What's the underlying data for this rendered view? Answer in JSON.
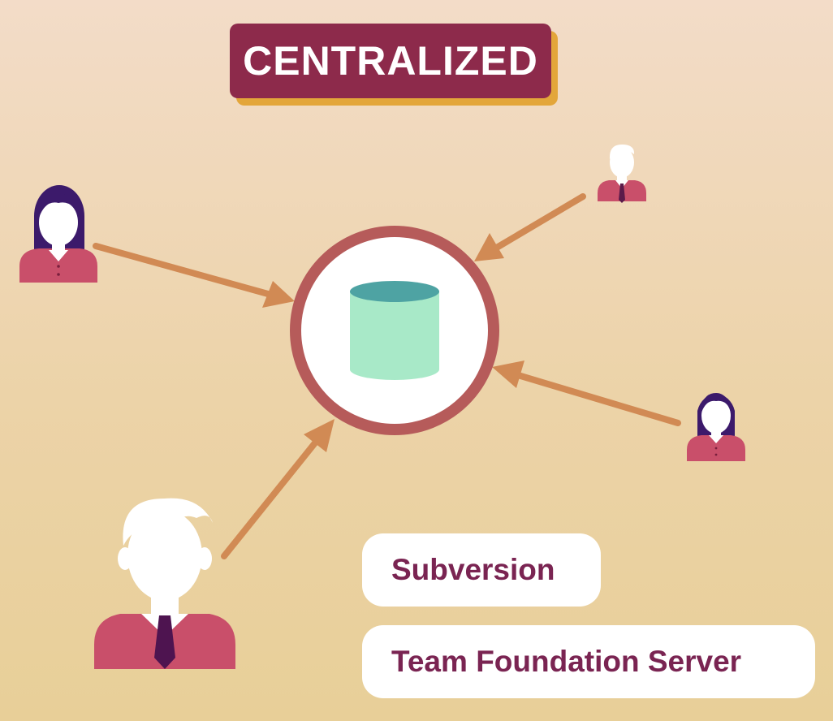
{
  "title": "CENTRALIZED",
  "hub": {
    "icon": "database-icon"
  },
  "users": [
    {
      "icon": "woman-user-icon"
    },
    {
      "icon": "man-user-icon"
    },
    {
      "icon": "woman-user-icon"
    },
    {
      "icon": "man-user-icon"
    }
  ],
  "tools": [
    {
      "label": "Subversion"
    },
    {
      "label": "Team Foundation Server"
    }
  ],
  "colors": {
    "title_bg": "#8d2a4b",
    "title_shadow": "#e3a63a",
    "arrow": "#d18a54",
    "ring": "#b65b5a",
    "db_body": "#a8e9c8",
    "db_top": "#4ea3a3",
    "shirt": "#c94f6a",
    "hair": "#3c1a6b",
    "tool_text": "#7a2452"
  }
}
